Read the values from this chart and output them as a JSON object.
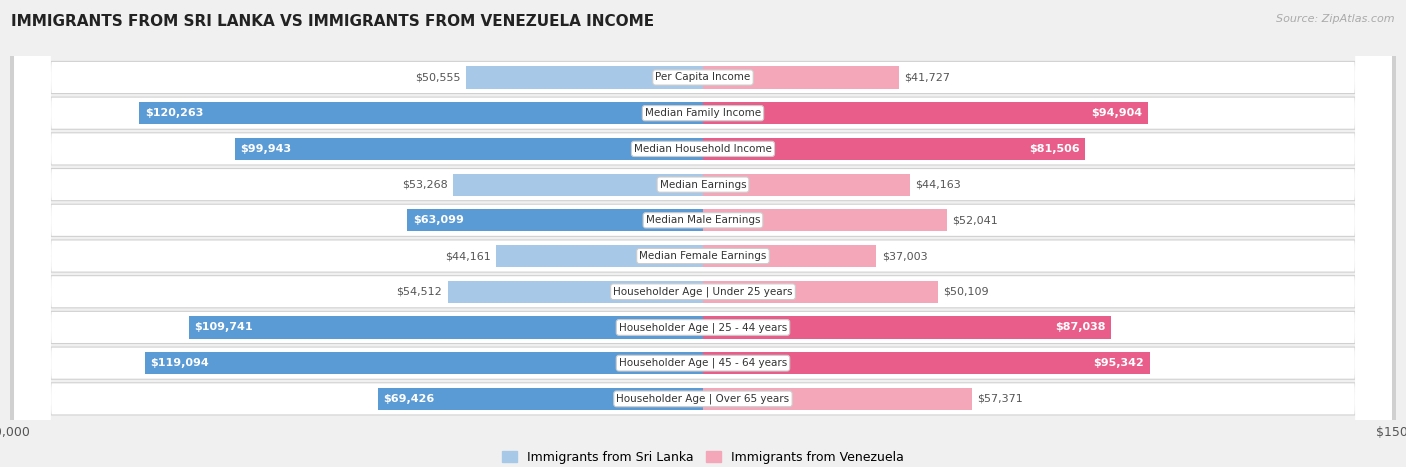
{
  "title": "IMMIGRANTS FROM SRI LANKA VS IMMIGRANTS FROM VENEZUELA INCOME",
  "source": "Source: ZipAtlas.com",
  "categories": [
    "Per Capita Income",
    "Median Family Income",
    "Median Household Income",
    "Median Earnings",
    "Median Male Earnings",
    "Median Female Earnings",
    "Householder Age | Under 25 years",
    "Householder Age | 25 - 44 years",
    "Householder Age | 45 - 64 years",
    "Householder Age | Over 65 years"
  ],
  "sri_lanka_values": [
    50555,
    120263,
    99943,
    53268,
    63099,
    44161,
    54512,
    109741,
    119094,
    69426
  ],
  "venezuela_values": [
    41727,
    94904,
    81506,
    44163,
    52041,
    37003,
    50109,
    87038,
    95342,
    57371
  ],
  "sri_lanka_labels": [
    "$50,555",
    "$120,263",
    "$99,943",
    "$53,268",
    "$63,099",
    "$44,161",
    "$54,512",
    "$109,741",
    "$119,094",
    "$69,426"
  ],
  "venezuela_labels": [
    "$41,727",
    "$94,904",
    "$81,506",
    "$44,163",
    "$52,041",
    "$37,003",
    "$50,109",
    "$87,038",
    "$95,342",
    "$57,371"
  ],
  "sri_lanka_color_light": "#a8c8e8",
  "sri_lanka_color_dark": "#5b9bd5",
  "venezuela_color_light": "#f4a7b9",
  "venezuela_color_dark": "#e85d8a",
  "inside_label_threshold": 60000,
  "max_value": 150000,
  "legend_sri_lanka": "Immigrants from Sri Lanka",
  "legend_venezuela": "Immigrants from Venezuela",
  "background_color": "#f0f0f0",
  "row_bg_color": "#e8e8e8",
  "bar_height": 0.62,
  "title_fontsize": 11,
  "source_fontsize": 8,
  "label_fontsize": 8,
  "cat_fontsize": 7.5
}
